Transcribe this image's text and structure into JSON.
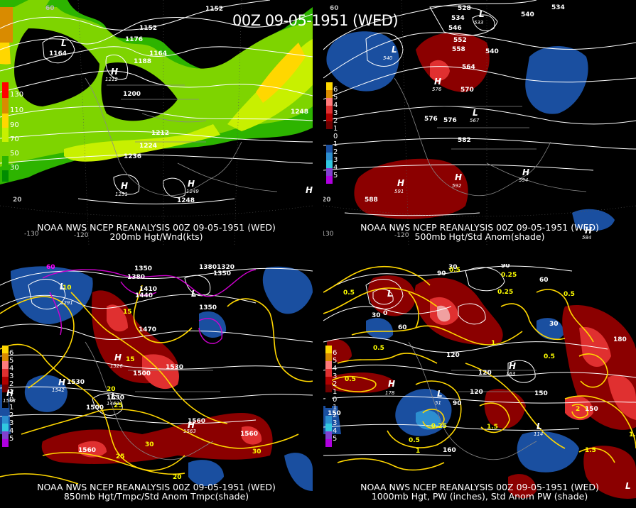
{
  "title": "00Z 09-05-1951 (WED)",
  "panels": {
    "p1": {
      "caption1": "NOAA NWS NCEP REANALYSIS 00Z 09-05-1951 (WED)",
      "caption2": "200mb Hgt/Wnd(kts)",
      "colorbar_labels": [
        "130",
        "110",
        "90",
        "70",
        "50",
        "30"
      ],
      "colorbar_colors": [
        "#ff0000",
        "#d98b00",
        "#ffd700",
        "#c8f000",
        "#7ed400",
        "#2db400",
        "#008c00"
      ],
      "contour_labels": [
        "1152",
        "1152",
        "1176",
        "1164",
        "1164",
        "1188",
        "1200",
        "1212",
        "1224",
        "1236",
        "1248",
        "1248",
        "60",
        "20"
      ],
      "pressure_centers": [
        {
          "type": "L",
          "value": "1164"
        },
        {
          "type": "H",
          "value": "1212"
        },
        {
          "type": "H",
          "value": "1251"
        },
        {
          "type": "H",
          "value": "1249"
        },
        {
          "type": "H",
          "value": ""
        }
      ],
      "lon_labels": [
        "-130",
        "-120"
      ]
    },
    "p2": {
      "caption1": "NOAA NWS NCEP REANALYSIS 00Z 09-05-1951 (WED)",
      "caption2": "500mb Hgt/Std Anom(shade)",
      "colorbar_labels": [
        "6",
        "5",
        "4",
        "3",
        "2",
        "1",
        "0",
        "1",
        "2",
        "3",
        "4",
        "5"
      ],
      "colorbar_colors": [
        "#ffd700",
        "#d98b00",
        "#ff7a7a",
        "#e03030",
        "#b00000",
        "#700000",
        "#000000",
        "#000000",
        "#1a4fa0",
        "#2c8fd0",
        "#30c8e0",
        "#8040d0",
        "#b000e0"
      ],
      "contour_labels": [
        "534",
        "528",
        "540",
        "534",
        "546",
        "552",
        "558",
        "540",
        "564",
        "570",
        "576",
        "576",
        "582",
        "588",
        "60",
        "20",
        "-130",
        "-120"
      ],
      "pressure_centers": [
        {
          "type": "L",
          "value": "533"
        },
        {
          "type": "L",
          "value": "540"
        },
        {
          "type": "H",
          "value": "576"
        },
        {
          "type": "L",
          "value": "567"
        },
        {
          "type": "H",
          "value": "591"
        },
        {
          "type": "H",
          "value": "592"
        },
        {
          "type": "H",
          "value": "594"
        },
        {
          "type": "H",
          "value": "584"
        }
      ]
    },
    "p3": {
      "caption1": "NOAA NWS NCEP REANALYSIS 00Z 09-05-1951 (WED)",
      "caption2": "850mb Hgt/Tmpc/Std Anom Tmpc(shade)",
      "colorbar_labels": [
        "6",
        "5",
        "4",
        "3",
        "2",
        "1",
        "0",
        "1",
        "2",
        "3",
        "4",
        "5"
      ],
      "contour_labels": [
        "1350",
        "1380",
        "1320",
        "1380",
        "1350",
        "1410",
        "1440",
        "1350",
        "1470",
        "1500",
        "1530",
        "1530",
        "1500",
        "1560",
        "1560",
        "1560",
        "1530"
      ],
      "temp_labels": [
        "10",
        "15",
        "15",
        "20",
        "25",
        "25",
        "30",
        "20",
        "30"
      ],
      "mag_labels": [
        "60"
      ],
      "pressure_centers": [
        {
          "type": "L",
          "value": "1291"
        },
        {
          "type": "L",
          "value": ""
        },
        {
          "type": "H",
          "value": "1526"
        },
        {
          "type": "H",
          "value": "1542"
        },
        {
          "type": "H",
          "value": "1548"
        },
        {
          "type": "L",
          "value": "1463"
        },
        {
          "type": "H",
          "value": "1563"
        }
      ]
    },
    "p4": {
      "caption1": "NOAA NWS NCEP REANALYSIS 00Z 09-05-1951 (WED)",
      "caption2": "1000mb Hgt, PW (inches), Std Anom PW (shade)",
      "colorbar_labels": [
        "6",
        "5",
        "4",
        "3",
        "2",
        "1",
        "0",
        "1",
        "2",
        "3",
        "4",
        "5"
      ],
      "contour_labels": [
        "30",
        "90",
        "90",
        "60",
        "30",
        "0",
        "120",
        "120",
        "90",
        "150",
        "150",
        "60",
        "30",
        "180",
        "160",
        "120",
        "150"
      ],
      "pw_labels": [
        "0.5",
        "0.25",
        "0.25",
        "0.5",
        "0.5",
        "0.5",
        "0.5",
        "0.5",
        "1",
        "1.5",
        "2",
        "-0.25",
        "0.5",
        "1.5",
        "1",
        "1.5"
      ],
      "pressure_centers": [
        {
          "type": "L",
          "value": ""
        },
        {
          "type": "H",
          "value": "178"
        },
        {
          "type": "L",
          "value": "51"
        },
        {
          "type": "H",
          "value": "163"
        },
        {
          "type": "L",
          "value": "114"
        },
        {
          "type": "L",
          "value": ""
        }
      ]
    }
  }
}
